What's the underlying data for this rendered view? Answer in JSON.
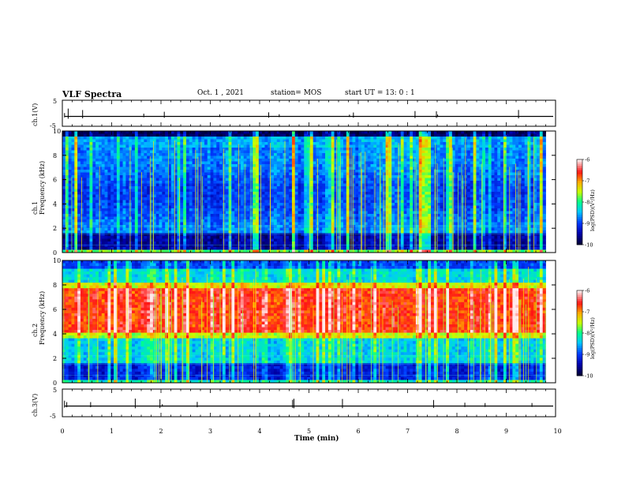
{
  "header": {
    "title": "VLF Spectra",
    "date": "Oct. 1 , 2021",
    "station": "station= MOS",
    "start": "start UT = 13: 0 : 1"
  },
  "chart_data": [
    {
      "type": "line",
      "name": "waveform-ch1",
      "ylabel": "ch.1(V)",
      "yticks": [
        "5",
        "-5"
      ],
      "ylim": [
        -5,
        5
      ],
      "xlim": [
        0,
        10
      ]
    },
    {
      "type": "heatmap",
      "name": "spectrogram-ch1",
      "ylabel_1": "ch.1",
      "ylabel_2": "Frequency (kHz)",
      "yticks": [
        "0",
        "2",
        "4",
        "6",
        "8",
        "10"
      ],
      "ylim": [
        0,
        10
      ],
      "xlim": [
        0,
        9.8
      ],
      "colorbar": {
        "label": "log(PSD)(V²/Hz)",
        "ticks": [
          "-6",
          "-7",
          "-8",
          "-9",
          "-10"
        ],
        "range": [
          -10,
          -6
        ]
      }
    },
    {
      "type": "heatmap",
      "name": "spectrogram-ch2",
      "ylabel_1": "ch.2",
      "ylabel_2": "Frequency (kHz)",
      "yticks": [
        "0",
        "2",
        "4",
        "6",
        "8",
        "10"
      ],
      "ylim": [
        0,
        10
      ],
      "xlim": [
        0,
        9.8
      ],
      "colorbar": {
        "label": "log(PSD)(V²/Hz)",
        "ticks": [
          "-6",
          "-7",
          "-8",
          "-9",
          "-10"
        ],
        "range": [
          -10,
          -6
        ]
      }
    },
    {
      "type": "line",
      "name": "waveform-ch3",
      "ylabel": "ch.3(V)",
      "yticks": [
        "5",
        "-5"
      ],
      "ylim": [
        -5,
        5
      ],
      "xlim": [
        0,
        10
      ]
    }
  ],
  "xaxis": {
    "label": "Time (min)",
    "ticks": [
      "0",
      "1",
      "2",
      "3",
      "4",
      "5",
      "6",
      "7",
      "8",
      "9",
      "10"
    ]
  },
  "colors": {
    "spectrum_low": "#00008f",
    "spectrum_mid": "#00ff80",
    "spectrum_high": "#ff0000",
    "spectrum_peak": "#ffffff"
  }
}
